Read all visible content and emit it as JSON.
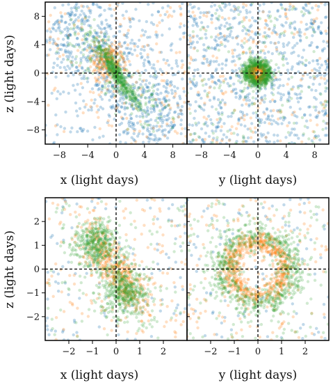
{
  "chart_data": [
    {
      "type": "scatter",
      "panel": "top-left",
      "xlabel": "x (light days)",
      "ylabel": "z (light days)",
      "xlim": [
        -10,
        10
      ],
      "ylim": [
        -10,
        10
      ],
      "xticks": [
        -8,
        -4,
        0,
        4,
        8
      ],
      "yticks": [
        -8,
        -4,
        0,
        4,
        8
      ],
      "xtick_labels": [
        "−8",
        "−4",
        "0",
        "4",
        "8"
      ],
      "ytick_labels": [
        "−8",
        "−4",
        "0",
        "4",
        "8"
      ],
      "reference_lines": {
        "x": 0,
        "y": 0,
        "style": "dashed"
      },
      "series": [
        {
          "color": "#1f77b4",
          "shape": "broad diagonal cloud from upper-left to lower-right, scattered across panel"
        },
        {
          "color": "#ff7f0e",
          "shape": "sparse scatter, concentration near upper-left of origin"
        },
        {
          "color": "#2ca02c",
          "shape": "dense compact diagonal concentration near origin"
        }
      ]
    },
    {
      "type": "scatter",
      "panel": "top-right",
      "xlabel": "y (light days)",
      "ylabel": "",
      "xlim": [
        -10,
        10
      ],
      "ylim": [
        -10,
        10
      ],
      "xticks": [
        -8,
        -4,
        0,
        4,
        8
      ],
      "xtick_labels": [
        "−8",
        "−4",
        "0",
        "4",
        "8"
      ],
      "reference_lines": {
        "x": 0,
        "y": 0,
        "style": "dashed"
      },
      "series": [
        {
          "color": "#1f77b4",
          "shape": "uniform scatter across panel"
        },
        {
          "color": "#ff7f0e",
          "shape": "small ring of radius about 1 around origin plus sparse scatter"
        },
        {
          "color": "#2ca02c",
          "shape": "ring of radius about 1.5 around origin"
        }
      ]
    },
    {
      "type": "scatter",
      "panel": "bottom-left",
      "xlabel": "x (light days)",
      "ylabel": "z (light days)",
      "xlim": [
        -3,
        3
      ],
      "ylim": [
        -3,
        3
      ],
      "xticks": [
        -2,
        -1,
        0,
        1,
        2
      ],
      "yticks": [
        -2,
        -1,
        0,
        1,
        2
      ],
      "xtick_labels": [
        "−2",
        "−1",
        "0",
        "1",
        "2"
      ],
      "ytick_labels": [
        "−2",
        "−1",
        "0",
        "1",
        "2"
      ],
      "reference_lines": {
        "x": 0,
        "y": 0,
        "style": "dashed"
      },
      "series": [
        {
          "color": "#1f77b4",
          "shape": "sparse scatter"
        },
        {
          "color": "#ff7f0e",
          "shape": "diagonal band through origin"
        },
        {
          "color": "#2ca02c",
          "shape": "diagonal band, dense near (-1, 1) and (0.5, -1)"
        }
      ]
    },
    {
      "type": "scatter",
      "panel": "bottom-right",
      "xlabel": "y (light days)",
      "ylabel": "",
      "xlim": [
        -3,
        3
      ],
      "ylim": [
        -3,
        3
      ],
      "xticks": [
        -2,
        -1,
        0,
        1,
        2
      ],
      "xtick_labels": [
        "−2",
        "−1",
        "0",
        "1",
        "2"
      ],
      "reference_lines": {
        "x": 0,
        "y": 0,
        "style": "dashed"
      },
      "series": [
        {
          "color": "#1f77b4",
          "shape": "sparse scatter"
        },
        {
          "color": "#ff7f0e",
          "shape": "ring of radius about 1.2 around origin"
        },
        {
          "color": "#2ca02c",
          "shape": "ring of radius about 1.5 around origin"
        }
      ]
    }
  ]
}
